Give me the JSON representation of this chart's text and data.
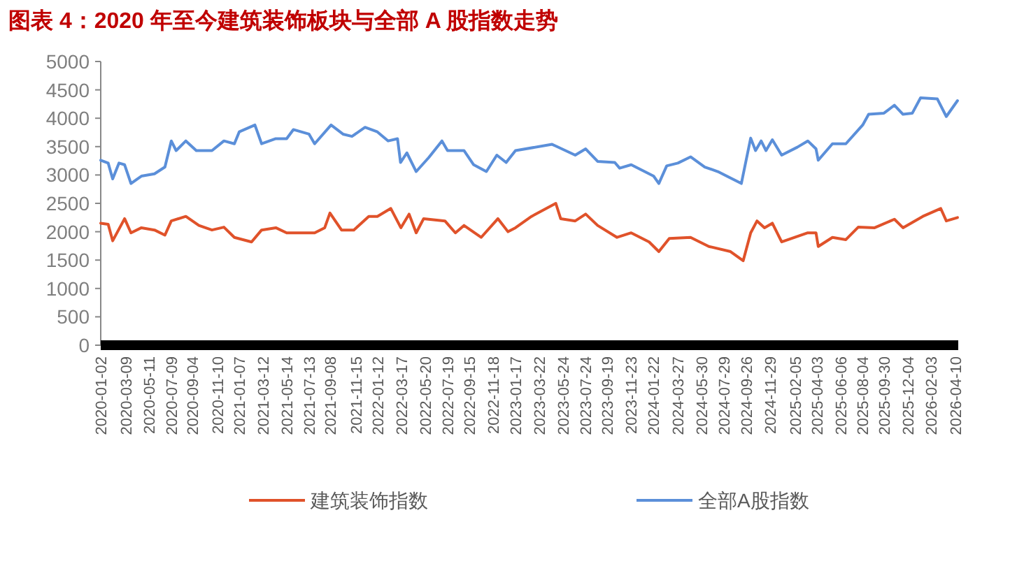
{
  "chart_data": {
    "type": "line",
    "title": "图表 4：2020 年至今建筑装饰板块与全部 A 股指数走势",
    "xlim": [
      "2020-01-02",
      "2026-04-17"
    ],
    "xticks": [
      "2020-01-02",
      "2020-03-09",
      "2020-05-11",
      "2020-07-09",
      "2020-09-04",
      "2020-11-10",
      "2021-01-07",
      "2021-03-12",
      "2021-05-14",
      "2021-07-13",
      "2021-09-08",
      "2021-11-15",
      "2022-01-12",
      "2022-03-17",
      "2022-05-20",
      "2022-07-19",
      "2022-09-15",
      "2022-11-18",
      "2023-01-17",
      "2023-03-22",
      "2023-05-24",
      "2023-07-24",
      "2023-09-19",
      "2023-11-23",
      "2024-01-22",
      "2024-03-27",
      "2024-05-30",
      "2024-07-29",
      "2024-09-26",
      "2024-11-29",
      "2025-02-05",
      "2025-04-03",
      "2025-06-06",
      "2025-08-04",
      "2025-09-30",
      "2025-12-04",
      "2026-02-03",
      "2026-04-10"
    ],
    "ylim": [
      0,
      5000
    ],
    "yticks": [
      0,
      500,
      1000,
      1500,
      2000,
      2500,
      3000,
      3500,
      4000,
      4500,
      5000
    ],
    "grid": false,
    "legend": "bottom",
    "line_style": "solid",
    "marker": "none",
    "series": [
      {
        "name": "建筑装饰指数",
        "color": "#e0522a",
        "x": [
          "2020-01-02",
          "2020-01-22",
          "2020-02-03",
          "2020-03-06",
          "2020-03-23",
          "2020-04-20",
          "2020-05-25",
          "2020-06-22",
          "2020-07-09",
          "2020-08-17",
          "2020-09-21",
          "2020-10-26",
          "2020-11-27",
          "2020-12-25",
          "2021-02-09",
          "2021-03-08",
          "2021-04-15",
          "2021-05-14",
          "2021-06-24",
          "2021-07-28",
          "2021-08-24",
          "2021-09-07",
          "2021-10-08",
          "2021-11-10",
          "2021-12-20",
          "2022-01-12",
          "2022-02-17",
          "2022-03-16",
          "2022-04-07",
          "2022-04-26",
          "2022-05-16",
          "2022-07-12",
          "2022-08-09",
          "2022-09-01",
          "2022-10-17",
          "2022-12-01",
          "2022-12-28",
          "2023-01-17",
          "2023-03-01",
          "2023-05-05",
          "2023-05-18",
          "2023-06-26",
          "2023-07-24",
          "2023-08-25",
          "2023-10-16",
          "2023-11-23",
          "2024-01-10",
          "2024-02-05",
          "2024-03-04",
          "2024-04-30",
          "2024-06-18",
          "2024-08-15",
          "2024-09-18",
          "2024-10-08",
          "2024-10-25",
          "2024-11-14",
          "2024-12-05",
          "2024-12-30",
          "2025-03-10",
          "2025-04-01",
          "2025-04-07",
          "2025-05-15",
          "2025-06-20",
          "2025-07-23",
          "2025-09-05",
          "2025-10-28",
          "2025-11-20",
          "2026-01-12",
          "2026-03-01",
          "2026-03-16",
          "2026-04-15"
        ],
        "values": [
          2150,
          2130,
          1840,
          2230,
          1980,
          2070,
          2030,
          1940,
          2190,
          2270,
          2110,
          2030,
          2080,
          1900,
          1820,
          2030,
          2070,
          1980,
          1980,
          1980,
          2070,
          2330,
          2030,
          2030,
          2270,
          2270,
          2410,
          2070,
          2310,
          1980,
          2230,
          2190,
          1980,
          2110,
          1900,
          2230,
          2000,
          2070,
          2270,
          2500,
          2230,
          2190,
          2310,
          2110,
          1900,
          1980,
          1820,
          1650,
          1880,
          1900,
          1740,
          1650,
          1490,
          1980,
          2190,
          2070,
          2150,
          1820,
          1980,
          1980,
          1740,
          1900,
          1860,
          2080,
          2070,
          2220,
          2070,
          2270,
          2410,
          2190,
          2250
        ]
      },
      {
        "name": "全部A股指数",
        "color": "#5b8fd9",
        "x": [
          "2020-01-02",
          "2020-01-22",
          "2020-02-03",
          "2020-02-20",
          "2020-03-06",
          "2020-03-23",
          "2020-04-20",
          "2020-05-25",
          "2020-06-22",
          "2020-07-09",
          "2020-07-22",
          "2020-08-17",
          "2020-09-14",
          "2020-10-26",
          "2020-11-27",
          "2020-12-25",
          "2021-01-07",
          "2021-02-18",
          "2021-03-08",
          "2021-04-15",
          "2021-05-14",
          "2021-06-01",
          "2021-07-13",
          "2021-07-28",
          "2021-09-10",
          "2021-10-12",
          "2021-11-05",
          "2021-12-10",
          "2022-01-12",
          "2022-02-10",
          "2022-03-07",
          "2022-03-15",
          "2022-04-01",
          "2022-04-26",
          "2022-05-30",
          "2022-07-04",
          "2022-07-19",
          "2022-09-01",
          "2022-09-27",
          "2022-10-31",
          "2022-11-28",
          "2022-12-23",
          "2023-01-17",
          "2023-04-25",
          "2023-05-05",
          "2023-06-26",
          "2023-07-24",
          "2023-08-25",
          "2023-10-10",
          "2023-10-23",
          "2023-11-23",
          "2024-01-22",
          "2024-02-05",
          "2024-02-26",
          "2024-03-27",
          "2024-04-30",
          "2024-06-07",
          "2024-07-12",
          "2024-09-13",
          "2024-10-08",
          "2024-10-21",
          "2024-11-05",
          "2024-11-18",
          "2024-12-05",
          "2024-12-30",
          "2025-02-10",
          "2025-03-10",
          "2025-04-01",
          "2025-04-07",
          "2025-05-15",
          "2025-06-20",
          "2025-08-04",
          "2025-08-20",
          "2025-09-30",
          "2025-10-28",
          "2025-11-20",
          "2025-12-15",
          "2026-01-06",
          "2026-02-20",
          "2026-03-16",
          "2026-04-15"
        ],
        "values": [
          3260,
          3210,
          2930,
          3210,
          3180,
          2850,
          2980,
          3020,
          3140,
          3600,
          3430,
          3600,
          3430,
          3430,
          3600,
          3550,
          3760,
          3880,
          3550,
          3640,
          3640,
          3800,
          3720,
          3550,
          3880,
          3720,
          3680,
          3840,
          3760,
          3600,
          3640,
          3220,
          3390,
          3060,
          3310,
          3600,
          3430,
          3430,
          3180,
          3060,
          3350,
          3220,
          3430,
          3540,
          3510,
          3350,
          3460,
          3240,
          3220,
          3120,
          3180,
          2980,
          2850,
          3160,
          3210,
          3320,
          3140,
          3060,
          2850,
          3650,
          3430,
          3600,
          3430,
          3620,
          3350,
          3490,
          3600,
          3460,
          3260,
          3550,
          3550,
          3880,
          4070,
          4090,
          4230,
          4070,
          4090,
          4360,
          4340,
          4030,
          4310
        ]
      }
    ]
  }
}
